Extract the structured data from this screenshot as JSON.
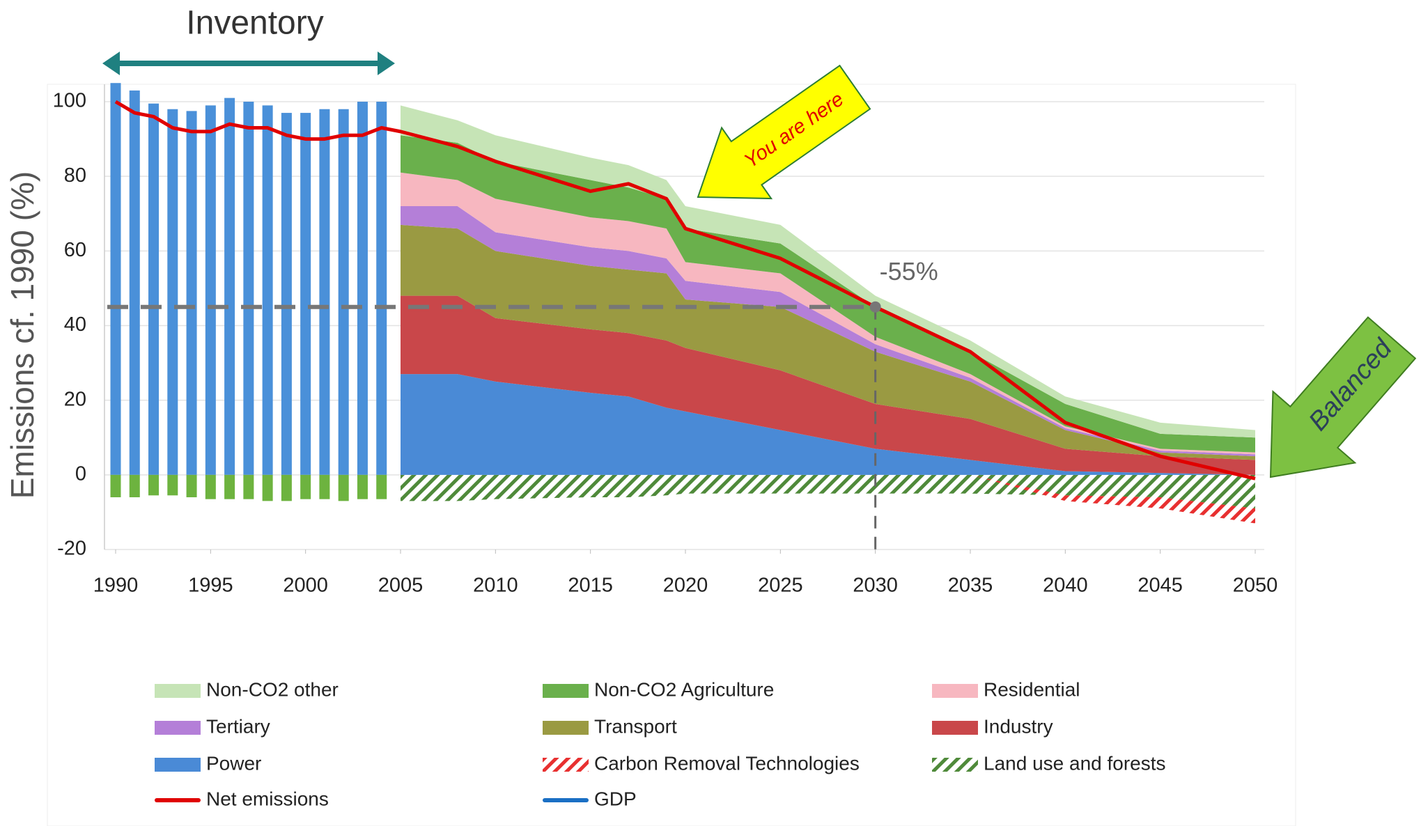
{
  "chart_data": {
    "type": "stacked-area",
    "ylabel": "Emissions cf. 1990 (%)",
    "x": [
      1990,
      1991,
      1992,
      1993,
      1994,
      1995,
      1996,
      1997,
      1998,
      1999,
      2000,
      2001,
      2002,
      2003,
      2004,
      2005,
      2008,
      2010,
      2015,
      2017,
      2019,
      2020,
      2025,
      2030,
      2035,
      2040,
      2045,
      2050
    ],
    "xlim": [
      1990,
      2050
    ],
    "xticks": [
      1990,
      1995,
      2000,
      2005,
      2010,
      2015,
      2020,
      2025,
      2030,
      2035,
      2040,
      2045,
      2050
    ],
    "ylim": [
      -20,
      100
    ],
    "yticks": [
      -20,
      0,
      20,
      40,
      60,
      80,
      100
    ],
    "grid": true,
    "inventory_bars": {
      "color": "#4a90d9",
      "values": [
        105,
        103,
        99.5,
        98,
        97.5,
        99,
        101,
        100,
        99,
        97,
        97,
        98,
        98,
        100,
        100,
        null,
        null,
        null,
        null,
        null,
        null,
        null,
        null,
        null,
        null,
        null,
        null,
        null
      ]
    },
    "series": [
      {
        "name": "Non-CO2 other",
        "color": "#c6e4b6",
        "kind": "area",
        "values": [
          null,
          null,
          null,
          null,
          null,
          null,
          null,
          null,
          null,
          null,
          null,
          null,
          null,
          null,
          null,
          8,
          6,
          7,
          6,
          6,
          5,
          6,
          5,
          3,
          3,
          2,
          3,
          2
        ]
      },
      {
        "name": "Non-CO2 Agriculture",
        "color": "#6ab04c",
        "kind": "area",
        "values": [
          null,
          null,
          null,
          null,
          null,
          null,
          null,
          null,
          null,
          null,
          null,
          null,
          null,
          null,
          null,
          10,
          10,
          10,
          10,
          9,
          8,
          9,
          8,
          8,
          6,
          6,
          4,
          4
        ]
      },
      {
        "name": "Residential",
        "color": "#f7b7c0",
        "kind": "area",
        "values": [
          null,
          null,
          null,
          null,
          null,
          null,
          null,
          null,
          null,
          null,
          null,
          null,
          null,
          null,
          null,
          9,
          7,
          9,
          8,
          8,
          8,
          5,
          5,
          2,
          1,
          0.5,
          0.5,
          0.5
        ]
      },
      {
        "name": "Tertiary",
        "color": "#b47fd8",
        "kind": "area",
        "values": [
          null,
          null,
          null,
          null,
          null,
          null,
          null,
          null,
          null,
          null,
          null,
          null,
          null,
          null,
          null,
          5,
          6,
          5,
          5,
          5,
          4,
          5,
          4,
          2,
          1,
          0.5,
          0.5,
          0.5
        ]
      },
      {
        "name": "Transport",
        "color": "#9a9a42",
        "kind": "area",
        "values": [
          null,
          null,
          null,
          null,
          null,
          null,
          null,
          null,
          null,
          null,
          null,
          null,
          null,
          null,
          null,
          19,
          18,
          18,
          17,
          17,
          18,
          13,
          17,
          14,
          10,
          5,
          1,
          1
        ]
      },
      {
        "name": "Industry",
        "color": "#c9474a",
        "kind": "area",
        "values": [
          null,
          null,
          null,
          null,
          null,
          null,
          null,
          null,
          null,
          null,
          null,
          null,
          null,
          null,
          null,
          21,
          21,
          17,
          17,
          17,
          18,
          17,
          16,
          12,
          11,
          6,
          4.5,
          4
        ]
      },
      {
        "name": "Power",
        "color": "#4a8ad6",
        "kind": "area",
        "values": [
          null,
          null,
          null,
          null,
          null,
          null,
          null,
          null,
          null,
          null,
          null,
          null,
          null,
          null,
          null,
          27,
          27,
          25,
          22,
          21,
          18,
          17,
          12,
          7,
          4,
          1,
          0.5,
          0
        ]
      },
      {
        "name": "Carbon Removal Technologies",
        "color": "#e83030",
        "kind": "hatch",
        "values": [
          null,
          null,
          null,
          null,
          null,
          null,
          null,
          null,
          null,
          null,
          null,
          null,
          null,
          null,
          null,
          0,
          0,
          0,
          0,
          0,
          0,
          0,
          0,
          0,
          0,
          -1.5,
          -3,
          -4
        ]
      },
      {
        "name": "Land use and forests",
        "color": "#4f8a3a",
        "bar_color": "#6db33f",
        "kind": "hatch",
        "values": [
          -6,
          -6,
          -5.5,
          -5.5,
          -6,
          -6.5,
          -6.5,
          -6.5,
          -7,
          -7,
          -6.5,
          -6.5,
          -7,
          -6.5,
          -6.5,
          -7,
          -7,
          -6.5,
          -6,
          -6,
          -5.5,
          -5,
          -5,
          -5,
          -5,
          -5.5,
          -6,
          -9
        ]
      },
      {
        "name": "Net emissions",
        "color": "#e00000",
        "kind": "line",
        "values": [
          100,
          97,
          96,
          93,
          92,
          92,
          94,
          93,
          93,
          91,
          90,
          90,
          91,
          91,
          93,
          92,
          88,
          84,
          76,
          78,
          74,
          66,
          58,
          45,
          33,
          14,
          5,
          -1
        ]
      },
      {
        "name": "GDP",
        "color": "#1a6fc4",
        "kind": "line",
        "values": [
          null,
          null,
          null,
          null,
          null,
          null,
          null,
          null,
          null,
          null,
          null,
          null,
          null,
          null,
          null,
          null,
          null,
          null,
          null,
          null,
          null,
          null,
          null,
          null,
          null,
          null,
          null,
          null
        ]
      }
    ],
    "target": {
      "label": "-55%",
      "x": 2030,
      "y": 45
    },
    "annotations": {
      "inventory": "Inventory",
      "you_are_here": "You are here",
      "balanced": "Balanced"
    }
  }
}
